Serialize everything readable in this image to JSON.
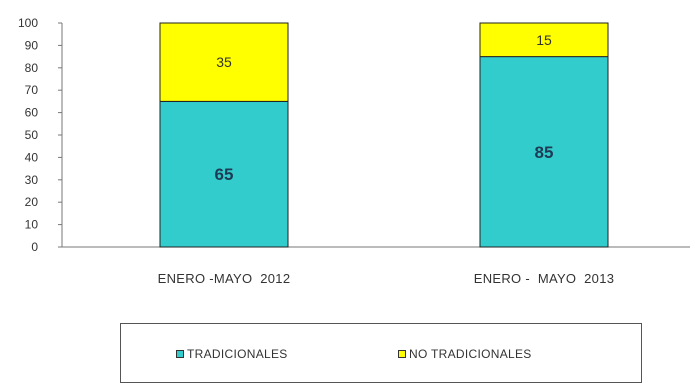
{
  "chart_data": {
    "type": "bar",
    "stacked": true,
    "categories": [
      "ENERO -MAYO  2012",
      "ENERO -  MAYO  2013"
    ],
    "series": [
      {
        "name": "TRADICIONALES",
        "values": [
          65,
          85
        ],
        "color": "#33cccc"
      },
      {
        "name": "NO TRADICIONALES",
        "values": [
          35,
          15
        ],
        "color": "#ffff00"
      }
    ],
    "ylim": [
      0,
      100
    ],
    "yticks": [
      0,
      10,
      20,
      30,
      40,
      50,
      60,
      70,
      80,
      90,
      100
    ],
    "grid": false,
    "legend_position": "bottom"
  }
}
